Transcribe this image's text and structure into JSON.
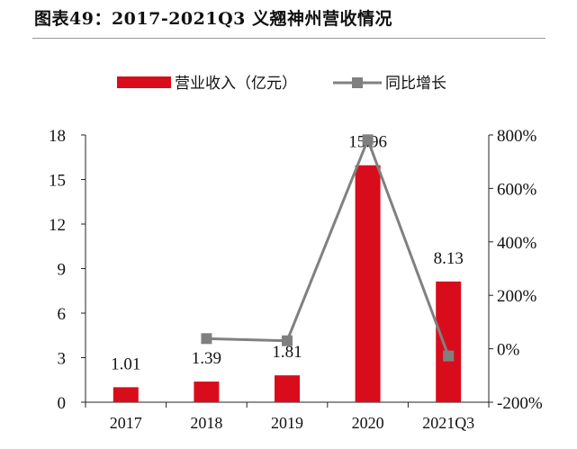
{
  "title": "图表49：2017-2021Q3 义翘神州营收情况",
  "chart_data": {
    "type": "bar+line",
    "categories": [
      "2017",
      "2018",
      "2019",
      "2020",
      "2021Q3"
    ],
    "series": [
      {
        "name": "营业收入（亿元）",
        "type": "bar",
        "axis": "left",
        "color": "#d90c1c",
        "values": [
          1.01,
          1.39,
          1.81,
          15.96,
          8.13
        ],
        "labels": [
          "1.01",
          "1.39",
          "1.81",
          "15.96",
          "8.13"
        ]
      },
      {
        "name": "同比增长",
        "type": "line",
        "axis": "right",
        "color": "#808080",
        "values": [
          null,
          38,
          30,
          782,
          -27
        ]
      }
    ],
    "y_left": {
      "ylim": [
        0,
        18
      ],
      "ticks": [
        "0",
        "3",
        "6",
        "9",
        "12",
        "15",
        "18"
      ]
    },
    "y_right": {
      "ylim": [
        -200,
        800
      ],
      "ticks": [
        "-200%",
        "0%",
        "200%",
        "400%",
        "600%",
        "800%"
      ]
    },
    "legend": "top",
    "grid": false
  }
}
